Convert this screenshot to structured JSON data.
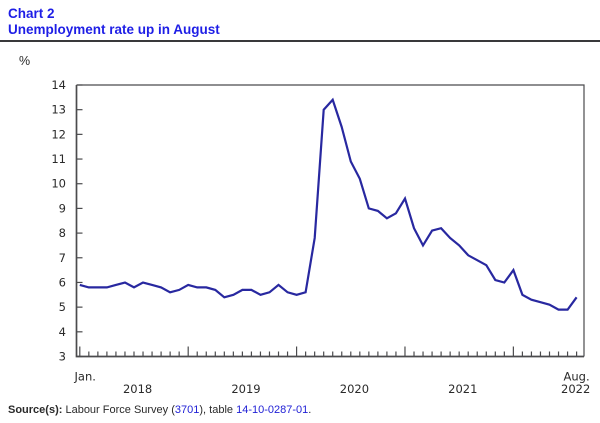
{
  "header": {
    "chart_label": "Chart 2",
    "title": "Unemployment rate up in August"
  },
  "axis_unit": "%",
  "source": {
    "prefix": "Source(s):",
    "seg1": " Labour Force Survey (",
    "link1": "3701",
    "seg2": "), table ",
    "link2": "14-10-0287-01",
    "seg3": "."
  },
  "colors": {
    "title_blue": "#1e1ee6",
    "link_blue": "#2121d6",
    "line_blue": "#2828a0",
    "axis_gray": "#4b4b4d",
    "text_dark": "#2a2a2a",
    "rule_dark": "#39393b"
  },
  "chart_data": {
    "type": "line",
    "title": "Unemployment rate up in August",
    "ylabel": "%",
    "ylim": [
      3,
      14
    ],
    "ytick_step": 1,
    "grid": false,
    "legend": false,
    "x_unit": "month",
    "x_range": [
      "Jan. 2018",
      "Aug. 2022"
    ],
    "month_edge_labels": [
      {
        "label": "Jan.",
        "month": 0.6
      },
      {
        "label": "Aug.",
        "month": 55
      }
    ],
    "year_labels": [
      {
        "label": "2018",
        "center_month": 6.4
      },
      {
        "label": "2019",
        "center_month": 18.4
      },
      {
        "label": "2020",
        "center_month": 30.4
      },
      {
        "label": "2021",
        "center_month": 42.4
      },
      {
        "label": "2022",
        "center_month": 54.9
      }
    ],
    "series": [
      {
        "name": "Unemployment rate (%)",
        "start": "2018-01",
        "end": "2022-08",
        "values": [
          5.9,
          5.8,
          5.8,
          5.8,
          5.9,
          6.0,
          5.8,
          6.0,
          5.9,
          5.8,
          5.6,
          5.7,
          5.9,
          5.8,
          5.8,
          5.7,
          5.4,
          5.5,
          5.7,
          5.7,
          5.5,
          5.6,
          5.9,
          5.6,
          5.5,
          5.6,
          7.8,
          13.0,
          13.4,
          12.3,
          10.9,
          10.2,
          9.0,
          8.9,
          8.6,
          8.8,
          9.4,
          8.2,
          7.5,
          8.1,
          8.2,
          7.8,
          7.5,
          7.1,
          6.9,
          6.7,
          6.1,
          6.0,
          6.5,
          5.5,
          5.3,
          5.2,
          5.1,
          4.9,
          4.9,
          5.4
        ]
      }
    ]
  }
}
